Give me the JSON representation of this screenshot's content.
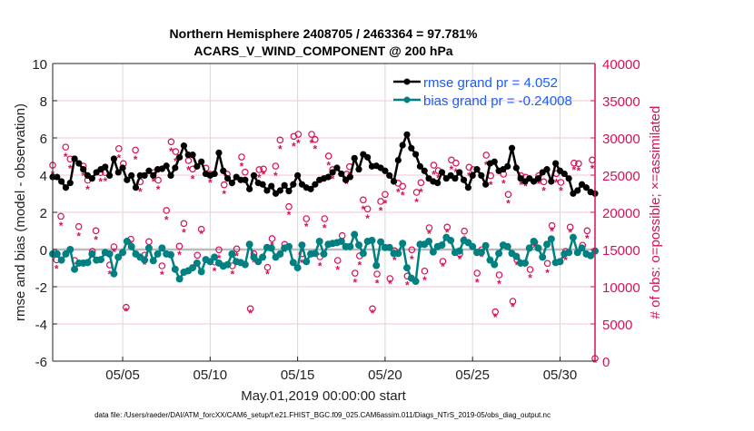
{
  "chart_data": {
    "type": "line",
    "title_line1": "Northern Hemisphere 2408705 / 2463364 = 97.781%",
    "title_line2": "ACARS_V_WIND_COMPONENT @ 200 hPa",
    "xlabel": "May.01,2019 00:00:00 start",
    "ylabel": "rmse and bias (model - observation)",
    "ylabel_right": "# of obs: o=possible; ×=assimilated",
    "footnote": "data file: /Users/raeder/DAI/ATM_forcXX/CAM6_setup/f.e21.FHIST_BGC.f09_025.CAM6assim.011/Diags_NTrS_2019-05/obs_diag_output.nc",
    "xlim_days": [
      0,
      31
    ],
    "ylim": [
      -6,
      10
    ],
    "ylim_right": [
      0,
      40000
    ],
    "grid": true,
    "legend_placement": "top-right",
    "x_ticks": [
      {
        "day": 4,
        "label": "05/05"
      },
      {
        "day": 9,
        "label": "05/10"
      },
      {
        "day": 14,
        "label": "05/15"
      },
      {
        "day": 19,
        "label": "05/20"
      },
      {
        "day": 24,
        "label": "05/25"
      },
      {
        "day": 29,
        "label": "05/30"
      }
    ],
    "y_ticks": [
      "-6",
      "-4",
      "-2",
      "0",
      "2",
      "4",
      "6",
      "8",
      "10"
    ],
    "y_ticks_right": [
      "0",
      "5000",
      "10000",
      "15000",
      "20000",
      "25000",
      "30000",
      "35000",
      "40000"
    ],
    "x_start_day": 0,
    "x_step_days": 0.25,
    "series": [
      {
        "name": "rmse grand pr = 4.052",
        "color": "#000000",
        "values": [
          3.9,
          3.9,
          3.66,
          3.33,
          3.58,
          4.88,
          4.63,
          4.31,
          3.98,
          3.82,
          4.15,
          4.31,
          4.44,
          3.98,
          4.88,
          4.15,
          4.39,
          3.74,
          3.98,
          3.33,
          3.98,
          3.98,
          4.23,
          3.98,
          4.31,
          4.34,
          4.5,
          3.98,
          4.39,
          4.96,
          5.58,
          5.09,
          5.09,
          4.47,
          4.72,
          4.07,
          3.98,
          4.07,
          5.2,
          4.23,
          3.82,
          3.58,
          3.9,
          3.74,
          3.74,
          3.25,
          3.98,
          3.58,
          3.5,
          3.17,
          3.41,
          3.01,
          3.17,
          3.45,
          3.14,
          3.5,
          3.98,
          3.5,
          3.33,
          3.25,
          3.5,
          3.74,
          3.82,
          3.9,
          4.15,
          4.39,
          4.07,
          3.74,
          3.9,
          4.91,
          4.31,
          5.12,
          4.96,
          4.47,
          4.5,
          4.39,
          4.23,
          3.98,
          3.66,
          4.8,
          5.61,
          6.18,
          5.45,
          5.12,
          4.47,
          4.23,
          3.82,
          3.66,
          3.58,
          4.15,
          3.82,
          3.98,
          3.82,
          4.15,
          3.74,
          3.33,
          3.98,
          4.31,
          3.98,
          3.5,
          4.63,
          4.72,
          4.23,
          4.31,
          4.47,
          5.45,
          4.39,
          3.82,
          3.66,
          3.82,
          3.66,
          3.82,
          4.15,
          4.31,
          3.66,
          4.63,
          4.23,
          4.07,
          3.82,
          3.01,
          3.17,
          3.5,
          3.33,
          3.09,
          3.01
        ]
      },
      {
        "name": "bias grand pr = -0.24008",
        "color": "#008080",
        "values": [
          -0.24,
          -0.24,
          -0.57,
          -0.24,
          0,
          -1.06,
          -0.73,
          -0.73,
          -0.7,
          -0.24,
          -0.57,
          -0.54,
          -0.16,
          -0.24,
          -1.3,
          -0.41,
          -0.16,
          0.44,
          0.16,
          -0.24,
          -0.41,
          -0.57,
          0.08,
          -0.6,
          -0.24,
          0.08,
          -0.24,
          -0.28,
          -1.06,
          -1.58,
          -1.22,
          -1.14,
          -0.98,
          -0.73,
          -1.19,
          -0.54,
          -0.65,
          -0.41,
          -0.73,
          -0.89,
          -0.81,
          -0.24,
          -0.65,
          -0.7,
          -0.81,
          0.28,
          -0.41,
          -0.65,
          -0.41,
          0.11,
          0.08,
          -0.41,
          -0.24,
          0.08,
          0.16,
          -0.7,
          -0.98,
          0.24,
          -0.65,
          -0.24,
          -0.21,
          0.44,
          -0.24,
          0.28,
          0.33,
          0.37,
          0.44,
          0.16,
          0.16,
          0.81,
          0.24,
          -0.21,
          0.44,
          0.49,
          -0.86,
          0.41,
          0.11,
          0.11,
          -0.21,
          -0.21,
          0.33,
          -0.98,
          -1.54,
          -1.71,
          0.28,
          0.28,
          0.44,
          -0.13,
          0.16,
          0.24,
          0.65,
          0.49,
          -0.16,
          -0.08,
          0.49,
          0.37,
          0.16,
          -0.16,
          -0.16,
          0.21,
          -0.57,
          -0.81,
          -0.21,
          0.24,
          0.16,
          -0.21,
          -0.37,
          -0.73,
          -0.73,
          0.08,
          0.44,
          0.08,
          -0.41,
          0.28,
          0.57,
          -0.7,
          -0.65,
          -0.24,
          -0.16,
          0.65,
          -0.16,
          0.08,
          -0.24,
          -0.33,
          -0.08
        ]
      }
    ],
    "obs_color": "#d6105a",
    "obs_count_columns": [
      "day",
      "possible",
      "assimilated"
    ],
    "obs_counts": [
      [
        0.0,
        25970,
        25300
      ],
      [
        0.22,
        13250,
        12600
      ],
      [
        0.47,
        19100,
        18400
      ],
      [
        0.74,
        28400,
        27700
      ],
      [
        1.0,
        26800,
        26100
      ],
      [
        1.26,
        13170,
        12500
      ],
      [
        1.49,
        17720,
        17000
      ],
      [
        1.75,
        25850,
        25100
      ],
      [
        2.0,
        23950,
        23300
      ],
      [
        2.27,
        14390,
        14200
      ],
      [
        2.47,
        17160,
        16500
      ],
      [
        2.74,
        24970,
        24300
      ],
      [
        3.0,
        24970,
        24400
      ],
      [
        3.26,
        12560,
        11900
      ],
      [
        3.5,
        15000,
        14900
      ],
      [
        3.78,
        28200,
        27500
      ],
      [
        4.04,
        26180,
        26000
      ],
      [
        4.2,
        6870,
        6870
      ],
      [
        4.47,
        16020,
        15900
      ],
      [
        4.73,
        28000,
        27300
      ],
      [
        5.0,
        23740,
        23000
      ],
      [
        5.25,
        13870,
        13200
      ],
      [
        5.5,
        15690,
        15300
      ],
      [
        5.77,
        24970,
        24300
      ],
      [
        6.03,
        23950,
        23300
      ],
      [
        6.25,
        12440,
        11800
      ],
      [
        6.5,
        19880,
        19200
      ],
      [
        6.77,
        29110,
        28400
      ],
      [
        7.03,
        27800,
        27100
      ],
      [
        7.24,
        15080,
        14500
      ],
      [
        7.5,
        18130,
        17500
      ],
      [
        7.76,
        26590,
        25900
      ],
      [
        8.0,
        25450,
        24700
      ],
      [
        8.27,
        13870,
        13200
      ],
      [
        8.5,
        17350,
        17300
      ],
      [
        8.76,
        25570,
        25100
      ],
      [
        9.0,
        24760,
        24200
      ],
      [
        9.25,
        12960,
        12300
      ],
      [
        9.5,
        14600,
        14000
      ],
      [
        9.8,
        23330,
        22700
      ],
      [
        9.97,
        24760,
        24600
      ],
      [
        10.27,
        12440,
        11900
      ],
      [
        10.52,
        14720,
        14300
      ],
      [
        10.8,
        27070,
        26400
      ],
      [
        11.0,
        25040,
        24500
      ],
      [
        11.3,
        6670,
        6670
      ],
      [
        11.5,
        14060,
        13500
      ],
      [
        11.8,
        25370,
        24900
      ],
      [
        12.05,
        25450,
        25300
      ],
      [
        12.28,
        12230,
        11900
      ],
      [
        12.54,
        16100,
        15800
      ],
      [
        12.74,
        25850,
        25100
      ],
      [
        13.0,
        29350,
        28700
      ],
      [
        13.26,
        15330,
        14900
      ],
      [
        13.5,
        20400,
        19900
      ],
      [
        13.78,
        29840,
        29100
      ],
      [
        14.04,
        30120,
        29500
      ],
      [
        14.24,
        14060,
        13400
      ],
      [
        14.5,
        18780,
        18300
      ],
      [
        14.8,
        30120,
        29500
      ],
      [
        15.0,
        29430,
        28700
      ],
      [
        15.28,
        13660,
        13000
      ],
      [
        15.54,
        18780,
        18100
      ],
      [
        15.77,
        27200,
        26500
      ],
      [
        16.0,
        25370,
        24700
      ],
      [
        16.29,
        13170,
        12500
      ],
      [
        16.55,
        16500,
        16300
      ],
      [
        16.8,
        24760,
        24000
      ],
      [
        16.97,
        25770,
        25100
      ],
      [
        17.28,
        11460,
        10800
      ],
      [
        17.54,
        13780,
        13100
      ],
      [
        17.75,
        21300,
        20600
      ],
      [
        18.0,
        20090,
        19400
      ],
      [
        18.28,
        6670,
        6670
      ],
      [
        18.54,
        11340,
        10700
      ],
      [
        18.75,
        21100,
        20400
      ],
      [
        19.0,
        22040,
        21400
      ],
      [
        19.28,
        10730,
        10600
      ],
      [
        19.54,
        14470,
        13800
      ],
      [
        19.75,
        23540,
        22900
      ],
      [
        20.0,
        23130,
        22500
      ],
      [
        20.27,
        11060,
        10400
      ],
      [
        20.53,
        14600,
        13900
      ],
      [
        20.8,
        22320,
        21600
      ],
      [
        21.05,
        23620,
        22900
      ],
      [
        21.26,
        11740,
        11100
      ],
      [
        21.52,
        17560,
        17300
      ],
      [
        21.78,
        25970,
        25300
      ],
      [
        22.04,
        25240,
        24800
      ],
      [
        22.3,
        13050,
        12900
      ],
      [
        22.55,
        17640,
        17500
      ],
      [
        22.79,
        26670,
        26000
      ],
      [
        23.05,
        26260,
        25600
      ],
      [
        23.27,
        14060,
        13900
      ],
      [
        23.53,
        17110,
        16600
      ],
      [
        23.8,
        25690,
        25100
      ],
      [
        24.04,
        25370,
        24800
      ],
      [
        24.26,
        11460,
        10800
      ],
      [
        24.52,
        14600,
        14200
      ],
      [
        24.78,
        27320,
        26600
      ],
      [
        25.04,
        24550,
        23900
      ],
      [
        25.3,
        6260,
        6100
      ],
      [
        25.52,
        11220,
        10600
      ],
      [
        25.77,
        24760,
        24100
      ],
      [
        26.04,
        22040,
        21400
      ],
      [
        26.3,
        7680,
        7500
      ],
      [
        26.54,
        13250,
        13100
      ],
      [
        26.77,
        24550,
        23900
      ],
      [
        27.03,
        24350,
        23700
      ],
      [
        27.29,
        11950,
        11400
      ],
      [
        27.55,
        15610,
        15500
      ],
      [
        27.78,
        24550,
        24000
      ],
      [
        28.07,
        23740,
        23100
      ],
      [
        28.28,
        12770,
        12100
      ],
      [
        28.54,
        17840,
        17700
      ],
      [
        28.79,
        24840,
        24200
      ],
      [
        29.05,
        23660,
        23100
      ],
      [
        29.32,
        14390,
        13800
      ],
      [
        29.58,
        17640,
        17500
      ],
      [
        29.8,
        26260,
        25900
      ],
      [
        30.06,
        26180,
        25800
      ],
      [
        30.29,
        15210,
        15000
      ],
      [
        30.55,
        17160,
        16700
      ],
      [
        30.84,
        26670,
        26100
      ],
      [
        31.0,
        0,
        0
      ]
    ]
  }
}
